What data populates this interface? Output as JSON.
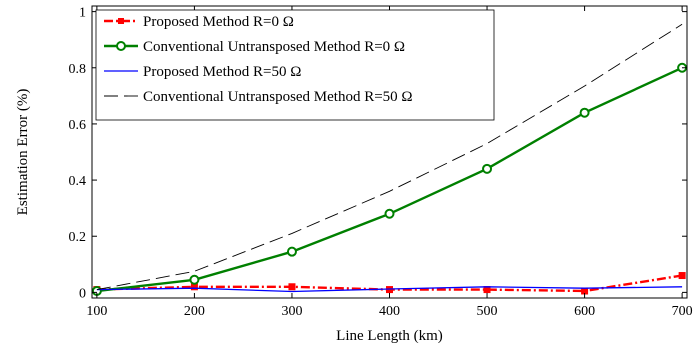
{
  "chart_data": {
    "type": "line",
    "title": "",
    "xlabel": "Line Length (km)",
    "ylabel": "Estimation Error (%)",
    "xlim": [
      95,
      705
    ],
    "ylim": [
      -0.02,
      1.02
    ],
    "x_ticks": [
      100,
      200,
      300,
      400,
      500,
      600,
      700
    ],
    "y_ticks": [
      0,
      0.2,
      0.4,
      0.6,
      0.8,
      1
    ],
    "x_tick_labels": [
      "100",
      "200",
      "300",
      "400",
      "500",
      "600",
      "700"
    ],
    "y_tick_labels": [
      "0",
      "0.2",
      "0.4",
      "0.6",
      "0.8",
      "1"
    ],
    "grid": false,
    "legend_position": "top-left",
    "series": [
      {
        "name": "Proposed Method R=0 Ω",
        "color": "#ff0000",
        "dash": "dashdot",
        "marker": "square",
        "x": [
          100,
          200,
          300,
          400,
          500,
          600,
          700
        ],
        "y": [
          0.01,
          0.02,
          0.02,
          0.01,
          0.01,
          0.005,
          0.06
        ]
      },
      {
        "name": "Conventional Untransposed Method R=0 Ω",
        "color": "#008000",
        "dash": "solid",
        "marker": "circle",
        "x": [
          100,
          200,
          300,
          400,
          500,
          600,
          700
        ],
        "y": [
          0.005,
          0.045,
          0.145,
          0.28,
          0.44,
          0.64,
          0.8
        ]
      },
      {
        "name": "Proposed Method R=50 Ω",
        "color": "#0000ff",
        "dash": "solid",
        "marker": "none",
        "x": [
          100,
          200,
          300,
          400,
          500,
          600,
          700
        ],
        "y": [
          0.01,
          0.015,
          0.003,
          0.012,
          0.02,
          0.015,
          0.02
        ]
      },
      {
        "name": "Conventional Untransposed Method R=50 Ω",
        "color": "#000000",
        "dash": "longdash",
        "marker": "none",
        "x": [
          100,
          200,
          300,
          400,
          500,
          600,
          700
        ],
        "y": [
          0.01,
          0.075,
          0.21,
          0.36,
          0.53,
          0.735,
          0.955
        ]
      }
    ]
  }
}
